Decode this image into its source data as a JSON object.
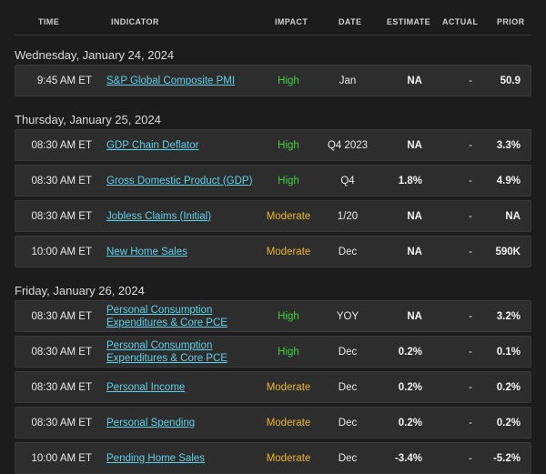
{
  "headers": {
    "time": "TIME",
    "indicator": "INDICATOR",
    "impact": "IMPACT",
    "date": "DATE",
    "estimate": "ESTIMATE",
    "actual": "ACTUAL",
    "prior": "PRIOR"
  },
  "days": [
    {
      "label": "Wednesday, January 24, 2024",
      "rows": [
        {
          "time": "9:45 AM ET",
          "indicator": "S&P Global Composite PMI",
          "impact": "High",
          "date": "Jan",
          "estimate": "NA",
          "actual": "-",
          "prior": "50.9"
        }
      ]
    },
    {
      "label": "Thursday, January 25, 2024",
      "rows": [
        {
          "time": "08:30 AM ET",
          "indicator": "GDP Chain Deflator",
          "impact": "High",
          "date": "Q4 2023",
          "estimate": "NA",
          "actual": "-",
          "prior": "3.3%"
        },
        {
          "time": "08:30 AM ET",
          "indicator": "Gross Domestic Product (GDP)",
          "impact": "High",
          "date": "Q4",
          "estimate": "1.8%",
          "actual": "-",
          "prior": "4.9%"
        },
        {
          "time": "08:30 AM ET",
          "indicator": "Jobless Claims (Initial)",
          "impact": "Moderate",
          "date": "1/20",
          "estimate": "NA",
          "actual": "-",
          "prior": "NA"
        },
        {
          "time": "10:00 AM ET",
          "indicator": "New Home Sales",
          "impact": "Moderate",
          "date": "Dec",
          "estimate": "NA",
          "actual": "-",
          "prior": "590K"
        }
      ]
    },
    {
      "label": "Friday, January 26, 2024",
      "rows": [
        {
          "time": "08:30 AM ET",
          "indicator": "Personal Consumption Expenditures & Core PCE",
          "impact": "High",
          "date": "YOY",
          "estimate": "NA",
          "actual": "-",
          "prior": "3.2%"
        },
        {
          "time": "08:30 AM ET",
          "indicator": "Personal Consumption Expenditures & Core PCE",
          "impact": "High",
          "date": "Dec",
          "estimate": "0.2%",
          "actual": "-",
          "prior": "0.1%"
        },
        {
          "time": "08:30 AM ET",
          "indicator": "Personal Income",
          "impact": "Moderate",
          "date": "Dec",
          "estimate": "0.2%",
          "actual": "-",
          "prior": "0.2%"
        },
        {
          "time": "08:30 AM ET",
          "indicator": "Personal Spending",
          "impact": "Moderate",
          "date": "Dec",
          "estimate": "0.2%",
          "actual": "-",
          "prior": "0.2%"
        },
        {
          "time": "10:00 AM ET",
          "indicator": "Pending Home Sales",
          "impact": "Moderate",
          "date": "Dec",
          "estimate": "-3.4%",
          "actual": "-",
          "prior": "-5.2%"
        }
      ]
    }
  ],
  "colors": {
    "background": "#1c1c1c",
    "row": "#2d2d2d",
    "link": "#5fd0e6",
    "high": "#3fcf3f",
    "moderate": "#e8b52e"
  }
}
